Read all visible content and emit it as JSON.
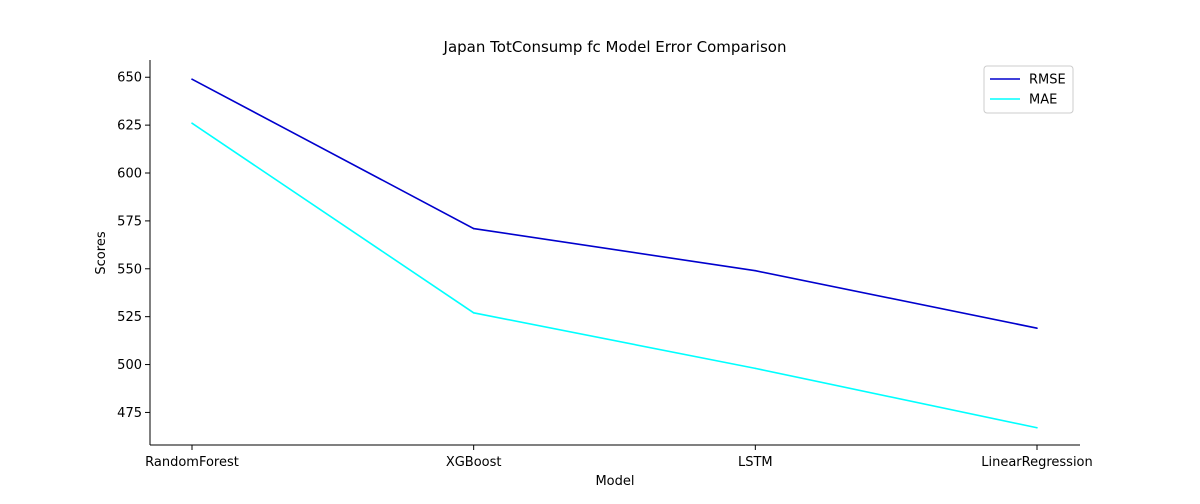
{
  "chart_data": {
    "type": "line",
    "title": "Japan TotConsump fc Model Error Comparison",
    "xlabel": "Model",
    "ylabel": "Scores",
    "categories": [
      "RandomForest",
      "XGBoost",
      "LSTM",
      "LinearRegression"
    ],
    "series": [
      {
        "name": "RMSE",
        "values": [
          649,
          571,
          549,
          519
        ],
        "color": "#0000cd"
      },
      {
        "name": "MAE",
        "values": [
          626,
          527,
          498,
          467
        ],
        "color": "#00ffff"
      }
    ],
    "ylim": [
      458,
      659
    ],
    "yticks": [
      475,
      500,
      525,
      550,
      575,
      600,
      625,
      650
    ],
    "grid": false,
    "legend_position": "top-right",
    "spines": "left-bottom"
  }
}
